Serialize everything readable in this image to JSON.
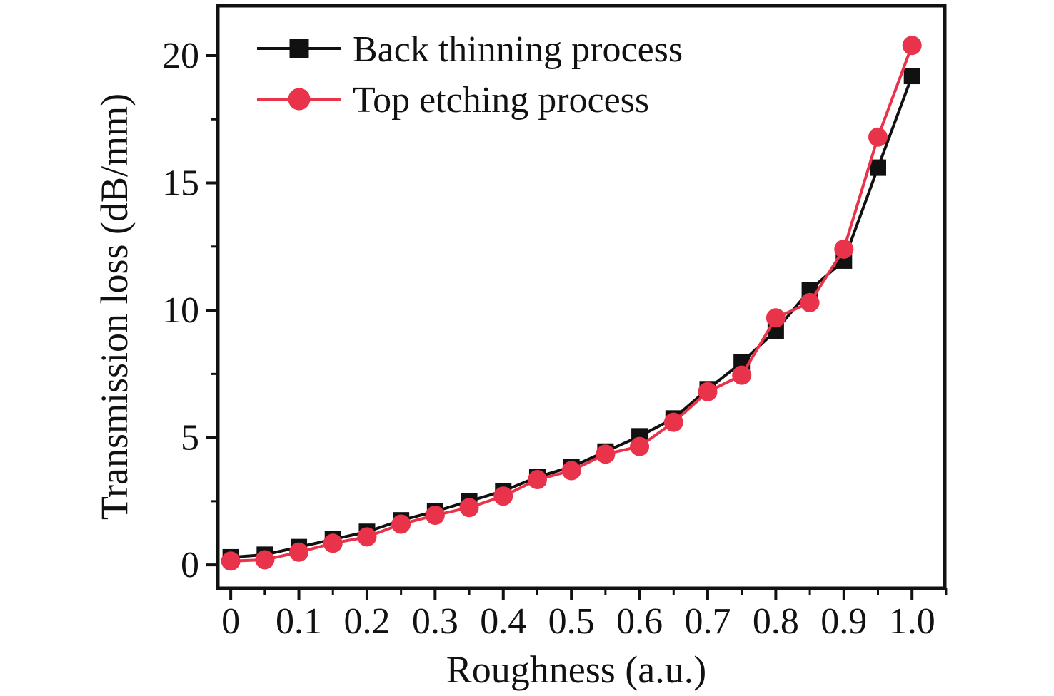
{
  "figure": {
    "background": "#ffffff",
    "frame_color": "#111111"
  },
  "chart_data": {
    "type": "line",
    "title": "",
    "xlabel": "Roughness (a.u.)",
    "ylabel": "Transmission loss (dB/mm)",
    "x": [
      0,
      0.05,
      0.1,
      0.15,
      0.2,
      0.25,
      0.3,
      0.35,
      0.4,
      0.45,
      0.5,
      0.55,
      0.6,
      0.65,
      0.7,
      0.75,
      0.8,
      0.85,
      0.9,
      0.95,
      1.0
    ],
    "series": [
      {
        "name": "Back thinning process",
        "color": "#111111",
        "marker": "square",
        "values": [
          0.3,
          0.4,
          0.7,
          1.0,
          1.3,
          1.75,
          2.1,
          2.5,
          2.9,
          3.45,
          3.85,
          4.45,
          5.05,
          5.75,
          6.9,
          7.95,
          9.2,
          10.8,
          11.95,
          15.6,
          19.2
        ]
      },
      {
        "name": "Top etching process",
        "color": "#e8334a",
        "marker": "circle",
        "values": [
          0.15,
          0.2,
          0.5,
          0.85,
          1.1,
          1.6,
          1.95,
          2.25,
          2.7,
          3.35,
          3.7,
          4.35,
          4.65,
          5.6,
          6.8,
          7.45,
          9.7,
          10.3,
          12.4,
          16.8,
          20.4
        ]
      }
    ],
    "x_ticks": {
      "major": [
        0,
        0.1,
        0.2,
        0.3,
        0.4,
        0.5,
        0.6,
        0.7,
        0.8,
        0.9,
        1.0
      ],
      "labels": [
        "0",
        "0.1",
        "0.2",
        "0.3",
        "0.4",
        "0.5",
        "0.6",
        "0.7",
        "0.8",
        "0.9",
        "1.0"
      ],
      "minor": [
        0.05,
        0.15,
        0.25,
        0.35,
        0.45,
        0.55,
        0.65,
        0.75,
        0.85,
        0.95,
        1.05
      ]
    },
    "y_ticks": {
      "major": [
        0,
        5,
        10,
        15,
        20
      ],
      "labels": [
        "0",
        "5",
        "10",
        "15",
        "20"
      ],
      "minor": [
        2.5,
        7.5,
        12.5,
        17.5
      ]
    },
    "xlim": [
      -0.019,
      1.048
    ],
    "ylim": [
      -0.92,
      21.96
    ],
    "grid": false,
    "legend_position": "top-left"
  }
}
